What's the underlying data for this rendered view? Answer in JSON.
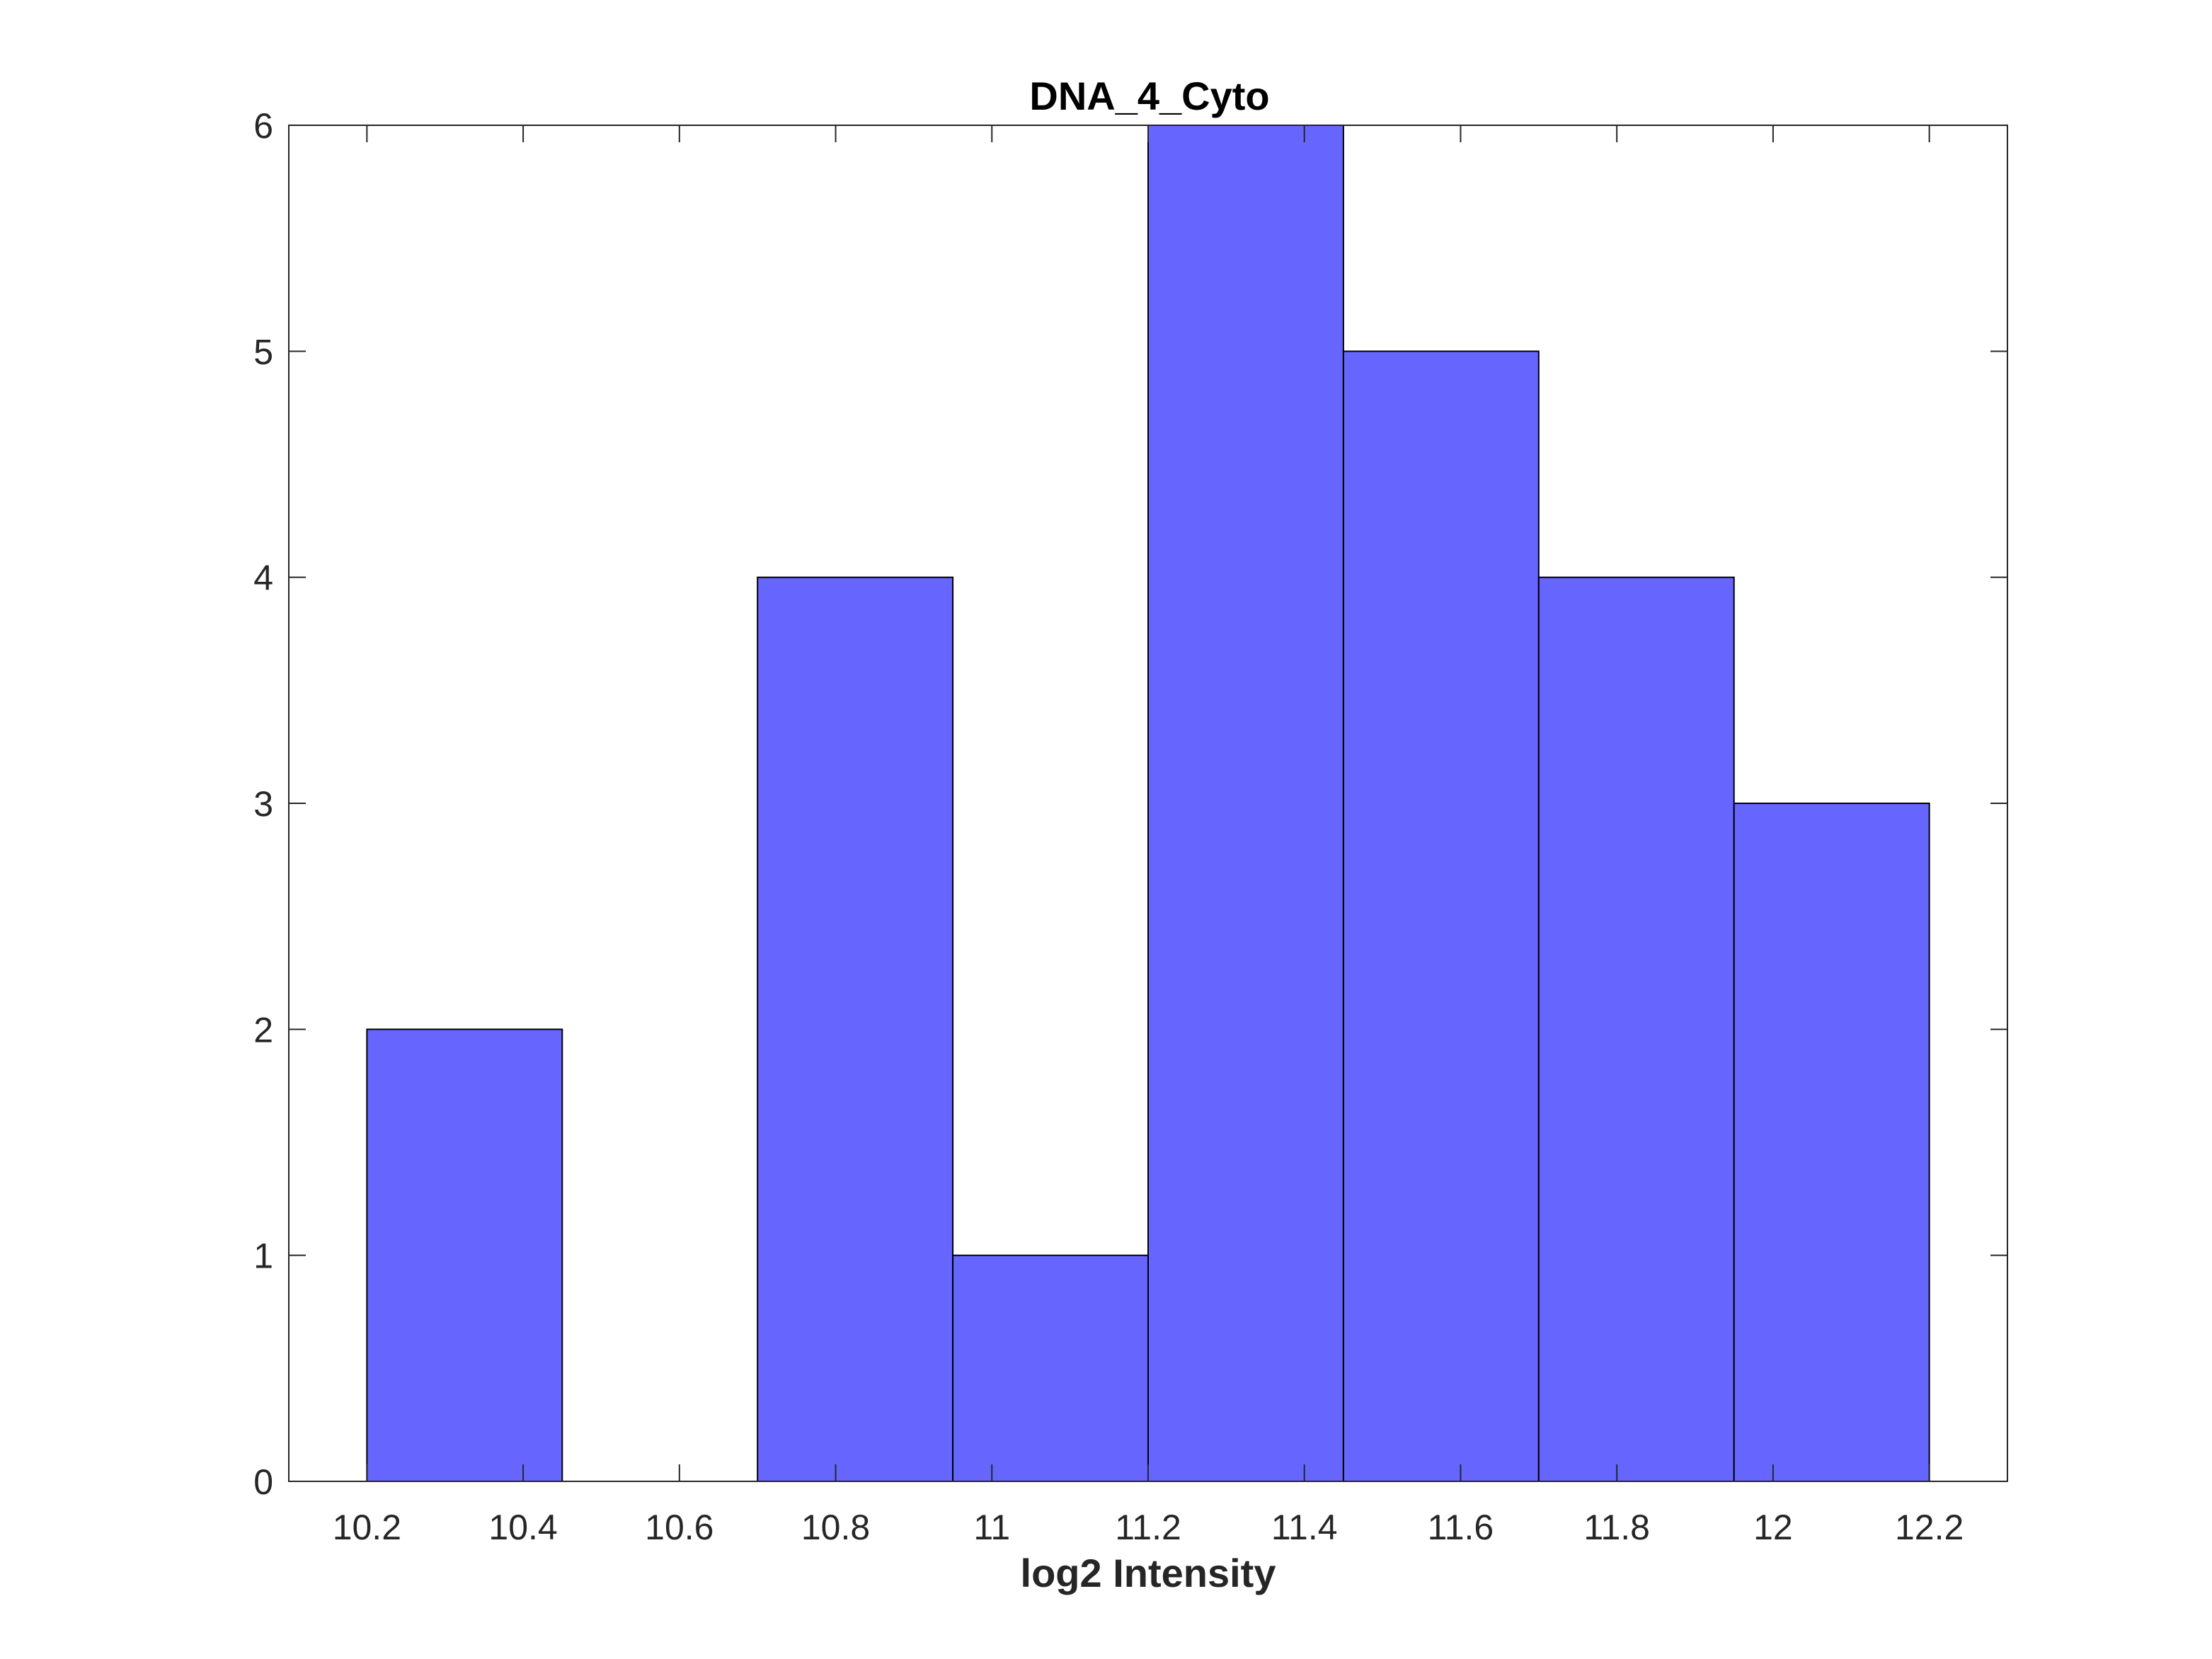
{
  "chart_data": {
    "type": "bar",
    "title": "DNA_4_Cyto",
    "xlabel": "log2 Intensity",
    "ylabel": "",
    "xlim": [
      10.1,
      12.3
    ],
    "ylim": [
      0,
      6
    ],
    "bin_edges": [
      10.2,
      10.45,
      10.7,
      10.95,
      11.2,
      11.45,
      11.7,
      11.95,
      12.2
    ],
    "values": [
      2,
      0,
      4,
      1,
      6,
      5,
      4,
      3
    ],
    "x_ticks": [
      "10.2",
      "10.4",
      "10.6",
      "10.8",
      "11",
      "11.2",
      "11.4",
      "11.6",
      "11.8",
      "12",
      "12.2"
    ],
    "x_tick_values": [
      10.2,
      10.4,
      10.6,
      10.8,
      11.0,
      11.2,
      11.4,
      11.6,
      11.8,
      12.0,
      12.2
    ],
    "y_ticks": [
      "0",
      "1",
      "2",
      "3",
      "4",
      "5",
      "6"
    ],
    "y_tick_values": [
      0,
      1,
      2,
      3,
      4,
      5,
      6
    ],
    "grid": false,
    "colors": {
      "bar_fill": "#6666ff",
      "bar_edge": "#000000",
      "axes": "#262626"
    }
  }
}
